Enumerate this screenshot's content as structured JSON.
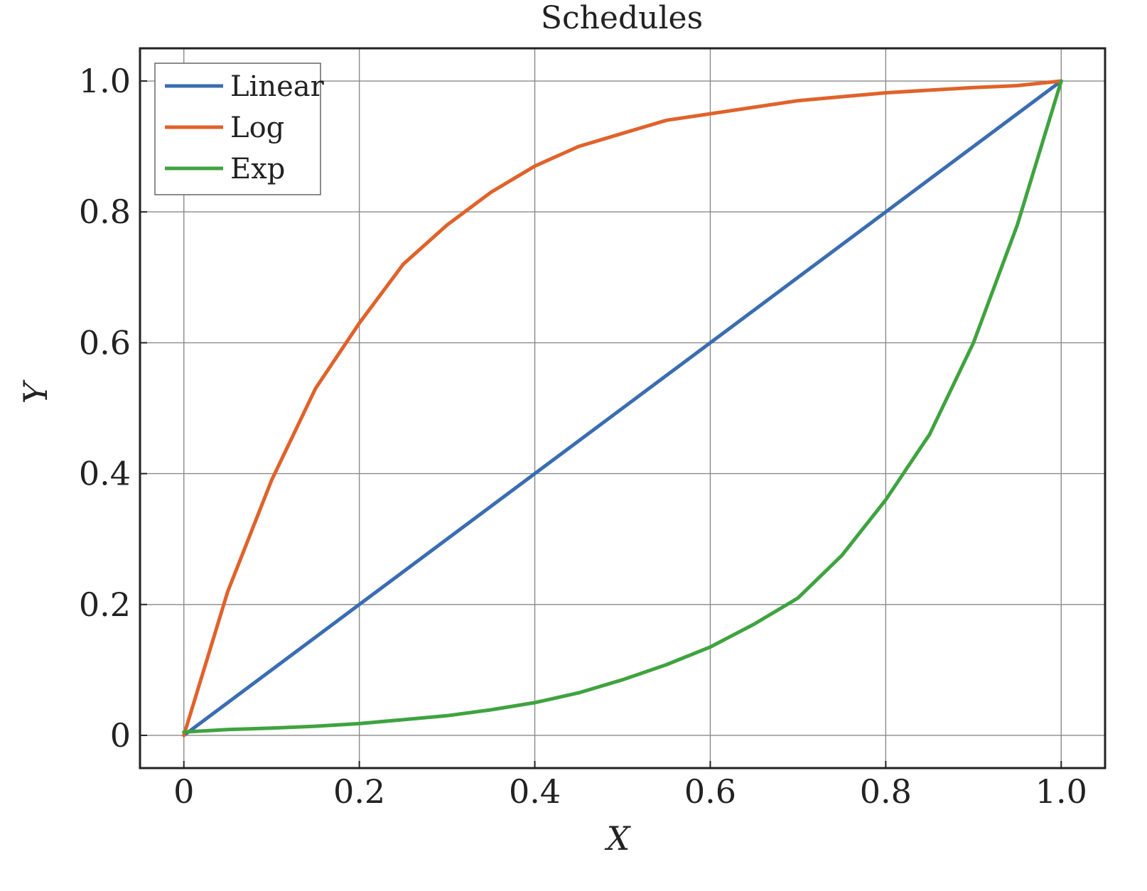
{
  "chart_data": {
    "type": "line",
    "title": "Schedules",
    "xlabel": "X",
    "ylabel": "Y",
    "xlim": [
      -0.05,
      1.05
    ],
    "ylim": [
      -0.05,
      1.05
    ],
    "xticks": [
      0,
      0.2,
      0.4,
      0.6,
      0.8,
      1.0
    ],
    "xtick_labels": [
      "0",
      "0.2",
      "0.4",
      "0.6",
      "0.8",
      "1.0"
    ],
    "yticks": [
      0,
      0.2,
      0.4,
      0.6,
      0.8,
      1.0
    ],
    "ytick_labels": [
      "0",
      "0.2",
      "0.4",
      "0.6",
      "0.8",
      "1.0"
    ],
    "grid": true,
    "legend_position": "top-left",
    "series": [
      {
        "name": "Linear",
        "color": "#3a6db1",
        "x": [
          0,
          0.2,
          0.4,
          0.6,
          0.8,
          1.0
        ],
        "y": [
          0,
          0.2,
          0.4,
          0.6,
          0.8,
          1.0
        ]
      },
      {
        "name": "Log",
        "color": "#e0622a",
        "x": [
          0,
          0.05,
          0.1,
          0.15,
          0.2,
          0.25,
          0.3,
          0.35,
          0.4,
          0.45,
          0.5,
          0.55,
          0.6,
          0.65,
          0.7,
          0.75,
          0.8,
          0.85,
          0.9,
          0.95,
          1.0
        ],
        "y": [
          0,
          0.22,
          0.39,
          0.53,
          0.63,
          0.72,
          0.78,
          0.83,
          0.87,
          0.9,
          0.92,
          0.94,
          0.95,
          0.96,
          0.97,
          0.976,
          0.982,
          0.986,
          0.99,
          0.993,
          1.0
        ]
      },
      {
        "name": "Exp",
        "color": "#3fa33f",
        "x": [
          0,
          0.05,
          0.1,
          0.15,
          0.2,
          0.25,
          0.3,
          0.35,
          0.4,
          0.45,
          0.5,
          0.55,
          0.6,
          0.65,
          0.7,
          0.75,
          0.8,
          0.85,
          0.9,
          0.95,
          1.0
        ],
        "y": [
          0.005,
          0.009,
          0.011,
          0.014,
          0.018,
          0.024,
          0.03,
          0.039,
          0.05,
          0.065,
          0.085,
          0.108,
          0.135,
          0.17,
          0.21,
          0.275,
          0.36,
          0.46,
          0.6,
          0.78,
          1.0
        ]
      }
    ]
  }
}
